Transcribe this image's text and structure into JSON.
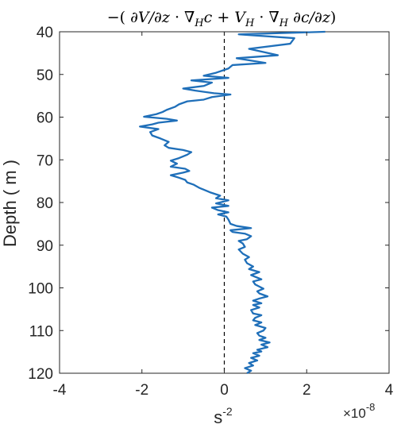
{
  "chart_data": {
    "type": "line",
    "title": "−(∂V/∂z · ∇Hc + VH · ∇H ∂c/∂z)",
    "title_parts": {
      "lead": "−(",
      "frac1_num": "∂",
      "frac1_num_var": "V",
      "frac1_den": "∂z",
      "mid1": "· ∇",
      "sub_H1": "H",
      "mid2": "c +",
      "vec2": "V",
      "sub_H2": "H",
      "mid3": "· ∇",
      "sub_H3": "H",
      "frac2_num": "∂c",
      "frac2_den": "∂z",
      "close": ")"
    },
    "xlabel": "s",
    "xlabel_exp": "-2",
    "ylabel": "Depth ( m )",
    "x_multiplier_base": "×10",
    "x_multiplier_exp": "-8",
    "xlim": [
      -4,
      4
    ],
    "ylim": [
      40,
      120
    ],
    "y_reversed": true,
    "xticks": [
      -4,
      -2,
      0,
      2,
      4
    ],
    "xtick_labels": [
      "-4",
      "-2",
      "0",
      "2",
      "4"
    ],
    "yticks": [
      40,
      50,
      60,
      70,
      80,
      90,
      100,
      110,
      120
    ],
    "ytick_labels": [
      "40",
      "50",
      "60",
      "70",
      "80",
      "90",
      "100",
      "110",
      "120"
    ],
    "grid": false,
    "zero_line": {
      "x": 0,
      "style": "dashed",
      "color": "#000000"
    },
    "series": [
      {
        "color": "#1f6fb9",
        "points": [
          [
            2.45,
            40.0
          ],
          [
            0.35,
            40.6
          ],
          [
            1.7,
            41.5
          ],
          [
            1.6,
            42.8
          ],
          [
            0.6,
            44.0
          ],
          [
            1.3,
            45.5
          ],
          [
            0.3,
            46.2
          ],
          [
            1.0,
            47.3
          ],
          [
            0.2,
            47.8
          ],
          [
            0.1,
            48.6
          ],
          [
            -0.2,
            49.6
          ],
          [
            -0.5,
            50.3
          ],
          [
            0.1,
            50.8
          ],
          [
            -0.8,
            51.4
          ],
          [
            -0.3,
            51.9
          ],
          [
            -0.5,
            52.7
          ],
          [
            -1.0,
            53.3
          ],
          [
            -0.7,
            53.8
          ],
          [
            -0.25,
            54.4
          ],
          [
            0.15,
            54.7
          ],
          [
            -0.3,
            55.3
          ],
          [
            -0.5,
            55.9
          ],
          [
            -0.9,
            56.3
          ],
          [
            -1.1,
            57.0
          ],
          [
            -1.2,
            57.6
          ],
          [
            -1.4,
            58.3
          ],
          [
            -1.5,
            58.8
          ],
          [
            -1.65,
            59.3
          ],
          [
            -1.95,
            59.9
          ],
          [
            -1.4,
            60.4
          ],
          [
            -1.15,
            60.8
          ],
          [
            -1.6,
            61.3
          ],
          [
            -1.75,
            61.7
          ],
          [
            -2.05,
            62.2
          ],
          [
            -1.6,
            62.8
          ],
          [
            -1.8,
            63.5
          ],
          [
            -1.75,
            64.3
          ],
          [
            -1.55,
            65.0
          ],
          [
            -1.35,
            65.8
          ],
          [
            -1.45,
            66.6
          ],
          [
            -1.35,
            67.2
          ],
          [
            -1.0,
            67.7
          ],
          [
            -0.8,
            68.2
          ],
          [
            -0.9,
            68.8
          ],
          [
            -1.1,
            69.6
          ],
          [
            -1.3,
            70.2
          ],
          [
            -1.15,
            70.9
          ],
          [
            -1.3,
            71.6
          ],
          [
            -0.95,
            72.1
          ],
          [
            -0.85,
            72.6
          ],
          [
            -1.0,
            73.0
          ],
          [
            -1.3,
            73.6
          ],
          [
            -1.1,
            74.2
          ],
          [
            -0.95,
            74.7
          ],
          [
            -0.9,
            75.3
          ],
          [
            -0.75,
            75.8
          ],
          [
            -0.6,
            76.6
          ],
          [
            -0.35,
            77.6
          ],
          [
            -0.1,
            78.4
          ],
          [
            -0.2,
            79.0
          ],
          [
            0.1,
            79.5
          ],
          [
            -0.2,
            80.2
          ],
          [
            0.1,
            80.8
          ],
          [
            -0.3,
            81.2
          ],
          [
            -0.15,
            81.8
          ],
          [
            0.1,
            82.3
          ],
          [
            -0.15,
            82.8
          ],
          [
            0.05,
            83.3
          ],
          [
            0.1,
            84.0
          ],
          [
            0.15,
            85.0
          ],
          [
            0.3,
            85.5
          ],
          [
            0.65,
            86.0
          ],
          [
            0.15,
            86.5
          ],
          [
            0.2,
            86.9
          ],
          [
            0.5,
            87.3
          ],
          [
            0.65,
            87.9
          ],
          [
            0.55,
            88.6
          ],
          [
            0.35,
            89.0
          ],
          [
            0.45,
            89.6
          ],
          [
            0.5,
            90.4
          ],
          [
            0.35,
            91.0
          ],
          [
            0.45,
            92.0
          ],
          [
            0.6,
            92.8
          ],
          [
            0.5,
            93.4
          ],
          [
            0.55,
            94.2
          ],
          [
            0.7,
            95.0
          ],
          [
            0.6,
            95.6
          ],
          [
            0.85,
            96.3
          ],
          [
            0.65,
            97.0
          ],
          [
            0.9,
            98.0
          ],
          [
            0.7,
            98.5
          ],
          [
            0.75,
            99.2
          ],
          [
            0.85,
            99.7
          ],
          [
            0.95,
            100.2
          ],
          [
            0.8,
            100.8
          ],
          [
            0.85,
            101.3
          ],
          [
            1.05,
            102.0
          ],
          [
            0.85,
            102.5
          ],
          [
            0.7,
            103.0
          ],
          [
            0.9,
            103.6
          ],
          [
            0.7,
            104.0
          ],
          [
            0.85,
            104.6
          ],
          [
            0.65,
            105.2
          ],
          [
            0.7,
            106.0
          ],
          [
            0.9,
            106.4
          ],
          [
            0.75,
            107.0
          ],
          [
            0.7,
            107.6
          ],
          [
            0.9,
            108.1
          ],
          [
            0.75,
            108.7
          ],
          [
            1.0,
            109.4
          ],
          [
            0.95,
            110.0
          ],
          [
            0.8,
            110.6
          ],
          [
            0.85,
            111.2
          ],
          [
            1.0,
            111.7
          ],
          [
            0.85,
            112.2
          ],
          [
            1.1,
            112.8
          ],
          [
            0.9,
            113.3
          ],
          [
            1.05,
            113.9
          ],
          [
            0.8,
            114.5
          ],
          [
            0.9,
            114.9
          ],
          [
            0.7,
            115.3
          ],
          [
            0.85,
            115.9
          ],
          [
            0.65,
            116.4
          ],
          [
            0.8,
            117.0
          ],
          [
            0.6,
            117.6
          ],
          [
            0.7,
            118.2
          ],
          [
            0.5,
            118.8
          ],
          [
            0.65,
            119.4
          ],
          [
            0.55,
            120.0
          ]
        ]
      }
    ]
  }
}
